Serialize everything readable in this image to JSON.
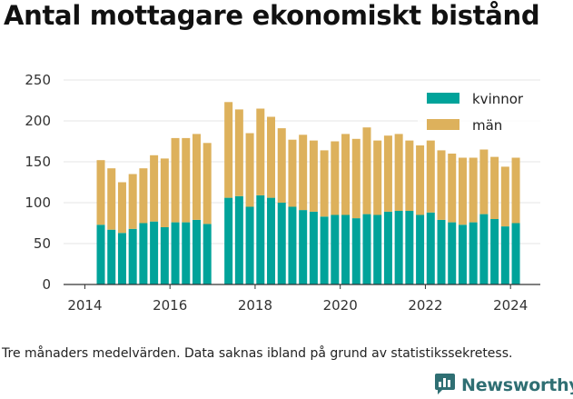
{
  "title": "Antal mottagare ekonomiskt bistånd",
  "footnote": "Tre månaders medelvärden. Data saknas ibland på grund av statistikssekretess.",
  "brand": {
    "name": "Newsworthy",
    "icon": "newsworthy-logo-icon"
  },
  "colors": {
    "kvinnor": "#00a39a",
    "man": "#ddb15c",
    "grid": "#e4e4e4",
    "axis": "#333333"
  },
  "legend": {
    "kvinnor": "kvinnor",
    "man": "män",
    "position": "top-right"
  },
  "chart_data": {
    "type": "bar",
    "stacked": true,
    "title": "Antal mottagare ekonomiskt bistånd",
    "xlabel": "",
    "ylabel": "",
    "ylim": [
      0,
      250
    ],
    "yticks": [
      0,
      50,
      100,
      150,
      200,
      250
    ],
    "xticks": [
      2014,
      2016,
      2018,
      2020,
      2022,
      2024
    ],
    "xlim": [
      2013.5,
      2024.7
    ],
    "grid": true,
    "x": [
      2014.375,
      2014.625,
      2014.875,
      2015.125,
      2015.375,
      2015.625,
      2015.875,
      2016.125,
      2016.375,
      2016.625,
      2016.875,
      2017.375,
      2017.625,
      2017.875,
      2018.125,
      2018.375,
      2018.625,
      2018.875,
      2019.125,
      2019.375,
      2019.625,
      2019.875,
      2020.125,
      2020.375,
      2020.625,
      2020.875,
      2021.125,
      2021.375,
      2021.625,
      2021.875,
      2022.125,
      2022.375,
      2022.625,
      2022.875,
      2023.125,
      2023.375,
      2023.625,
      2023.875,
      2024.125
    ],
    "series": [
      {
        "name": "kvinnor",
        "values": [
          73,
          67,
          63,
          68,
          75,
          77,
          70,
          76,
          76,
          79,
          74,
          106,
          108,
          95,
          109,
          106,
          100,
          95,
          91,
          89,
          83,
          85,
          85,
          81,
          86,
          85,
          89,
          90,
          90,
          85,
          88,
          79,
          76,
          73,
          76,
          86,
          80,
          71,
          75
        ]
      },
      {
        "name": "män",
        "values": [
          79,
          75,
          62,
          67,
          67,
          81,
          84,
          103,
          103,
          105,
          99,
          117,
          106,
          90,
          106,
          99,
          91,
          82,
          92,
          87,
          81,
          90,
          99,
          97,
          106,
          91,
          93,
          94,
          86,
          85,
          88,
          85,
          84,
          82,
          79,
          79,
          76,
          73,
          80
        ]
      }
    ]
  }
}
